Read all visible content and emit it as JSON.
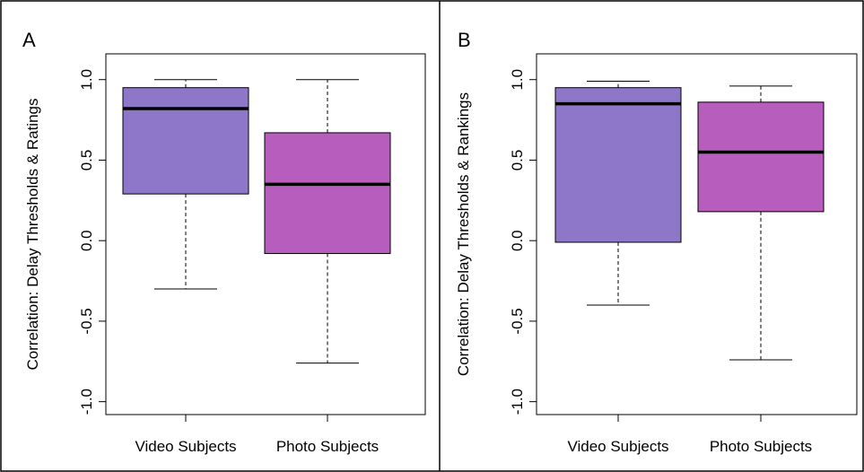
{
  "chart_data": [
    {
      "type": "box",
      "panel_label": "A",
      "ylabel": "Correlation: Delay Thresholds & Ratings",
      "categories": [
        "Video Subjects",
        "Photo Subjects"
      ],
      "colors": [
        "#8e77c8",
        "#b75dbd"
      ],
      "min": [
        -0.3,
        -0.76
      ],
      "q1": [
        0.29,
        -0.08
      ],
      "median": [
        0.82,
        0.35
      ],
      "q3": [
        0.95,
        0.67
      ],
      "max": [
        1.0,
        1.0
      ],
      "ylim": [
        -1.08,
        1.16
      ],
      "yticks": [
        {
          "value": 1,
          "label": "1.0"
        },
        {
          "value": 0.5,
          "label": "0.5"
        },
        {
          "value": 0,
          "label": "0.0"
        },
        {
          "value": -0.5,
          "label": "-0.5"
        },
        {
          "value": -1,
          "label": "-1.0"
        }
      ]
    },
    {
      "type": "box",
      "panel_label": "B",
      "ylabel": "Correlation: Delay Thresholds & Rankings",
      "categories": [
        "Video Subjects",
        "Photo Subjects"
      ],
      "colors": [
        "#8e77c8",
        "#b75dbd"
      ],
      "min": [
        -0.4,
        -0.74
      ],
      "q1": [
        -0.01,
        0.18
      ],
      "median": [
        0.85,
        0.55
      ],
      "q3": [
        0.95,
        0.86
      ],
      "max": [
        0.99,
        0.96
      ],
      "ylim": [
        -1.08,
        1.16
      ],
      "yticks": [
        {
          "value": 1,
          "label": "1.0"
        },
        {
          "value": 0.5,
          "label": "0.5"
        },
        {
          "value": 0,
          "label": "0.0"
        },
        {
          "value": -0.5,
          "label": "-0.5"
        },
        {
          "value": -1,
          "label": "-1.0"
        }
      ]
    }
  ]
}
